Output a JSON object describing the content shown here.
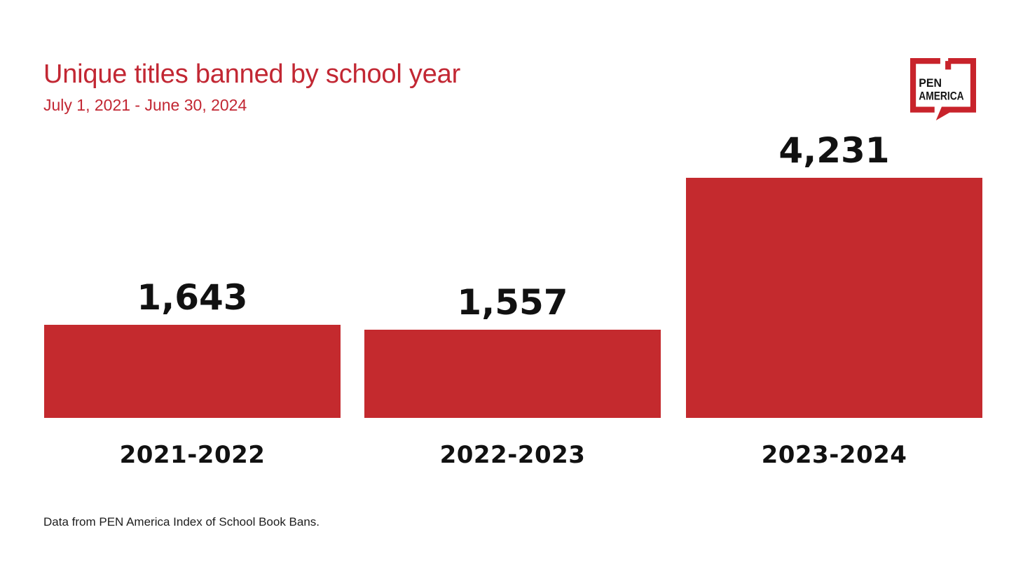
{
  "page": {
    "title": "Unique titles banned by school year",
    "subtitle": "July 1, 2021 - June 30, 2024",
    "footer": "Data from PEN America Index of School Book Bans."
  },
  "logo": {
    "org": "PEN America",
    "line1": "PEN",
    "line2": "AMERICA",
    "bubble_color": "#C8232B",
    "text_color": "#141414"
  },
  "colors": {
    "title_red": "#C22733",
    "bar_red": "#C42A2E",
    "label_black": "#111111",
    "background": "#FFFFFF"
  },
  "chart_data": {
    "type": "bar",
    "title": "Unique titles banned by school year",
    "subtitle": "July 1, 2021 - June 30, 2024",
    "categories": [
      "2021-2022",
      "2022-2023",
      "2023-2024"
    ],
    "values": [
      1643,
      1557,
      4231
    ],
    "value_labels": [
      "1,643",
      "1,557",
      "4,231"
    ],
    "bar_color": "#C42A2E",
    "ylim": [
      0,
      4231
    ],
    "grid": false,
    "legend": false,
    "value_label_position": "above-bar",
    "source": "Data from PEN America Index of School Book Bans."
  }
}
